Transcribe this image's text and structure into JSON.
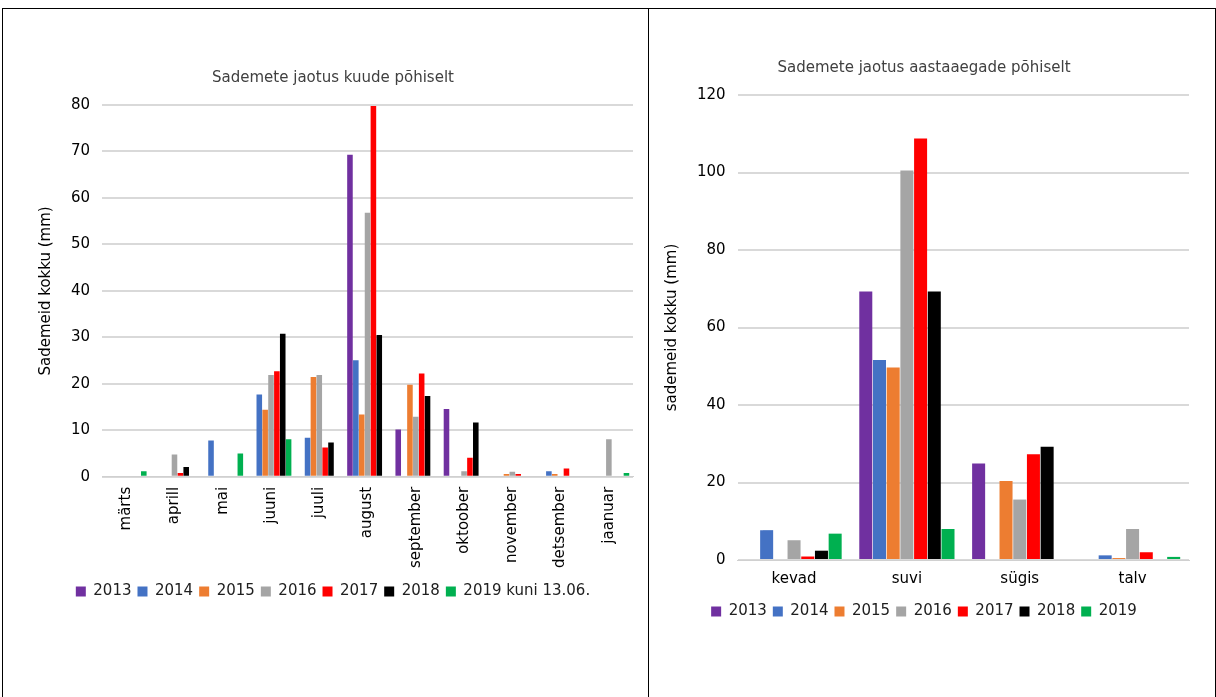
{
  "chart_data": [
    {
      "type": "bar",
      "title": "Sademete jaotus kuude põhiselt",
      "ylabel": "Sademeid kokku (mm)",
      "categories": [
        "märts",
        "aprill",
        "mai",
        "juuni",
        "juuli",
        "august",
        "september",
        "oktoober",
        "november",
        "detsember",
        "jaanuar"
      ],
      "series": [
        {
          "name": "2013",
          "color": "#7030a0",
          "values": [
            null,
            null,
            null,
            null,
            null,
            69.3,
            10.2,
            14.6,
            null,
            null,
            null
          ]
        },
        {
          "name": "2014",
          "color": "#4472c4",
          "values": [
            null,
            null,
            7.8,
            17.7,
            8.4,
            25.1,
            null,
            null,
            null,
            1.2,
            null
          ]
        },
        {
          "name": "2015",
          "color": "#ed7d31",
          "values": [
            null,
            null,
            null,
            14.4,
            21.5,
            13.4,
            19.8,
            null,
            0.6,
            0.6,
            null
          ]
        },
        {
          "name": "2016",
          "color": "#a5a5a5",
          "values": [
            null,
            4.8,
            null,
            21.9,
            21.9,
            56.8,
            12.9,
            1.2,
            1.1,
            null,
            8.1
          ]
        },
        {
          "name": "2017",
          "color": "#ff0000",
          "values": [
            null,
            0.8,
            null,
            22.7,
            6.3,
            79.8,
            22.2,
            4.1,
            0.6,
            1.8,
            null
          ]
        },
        {
          "name": "2018",
          "color": "#000000",
          "values": [
            null,
            2.1,
            null,
            30.8,
            7.4,
            30.5,
            17.4,
            11.7,
            null,
            null,
            null
          ]
        },
        {
          "name": "2019 kuni 13.06.",
          "color": "#00b050",
          "values": [
            1.2,
            null,
            5.0,
            8.1,
            null,
            null,
            null,
            null,
            null,
            null,
            0.8
          ]
        }
      ],
      "ylim": [
        0,
        80
      ],
      "yticks": [
        0,
        10,
        20,
        30,
        40,
        50,
        60,
        70,
        80
      ],
      "grid": "y",
      "legend": "bottom"
    },
    {
      "type": "bar",
      "title": "Sademete jaotus aastaaegade põhiselt",
      "ylabel": "sademeid kokku (mm)",
      "categories": [
        "kevad",
        "suvi",
        "sügis",
        "talv"
      ],
      "series": [
        {
          "name": "2013",
          "color": "#7030a0",
          "values": [
            null,
            69.3,
            24.9,
            null
          ]
        },
        {
          "name": "2014",
          "color": "#4472c4",
          "values": [
            7.7,
            51.6,
            null,
            1.2
          ]
        },
        {
          "name": "2015",
          "color": "#ed7d31",
          "values": [
            null,
            49.7,
            20.4,
            0.5
          ]
        },
        {
          "name": "2016",
          "color": "#a5a5a5",
          "values": [
            5.1,
            100.5,
            15.6,
            8.0
          ]
        },
        {
          "name": "2017",
          "color": "#ff0000",
          "values": [
            0.9,
            108.8,
            27.3,
            2.0
          ]
        },
        {
          "name": "2018",
          "color": "#000000",
          "values": [
            2.4,
            69.3,
            29.2,
            null
          ]
        },
        {
          "name": "2019",
          "color": "#00b050",
          "values": [
            6.8,
            8.0,
            null,
            0.8
          ]
        }
      ],
      "ylim": [
        0,
        120
      ],
      "yticks": [
        0,
        20,
        40,
        60,
        80,
        100,
        120
      ],
      "grid": "y",
      "legend": "bottom"
    }
  ]
}
